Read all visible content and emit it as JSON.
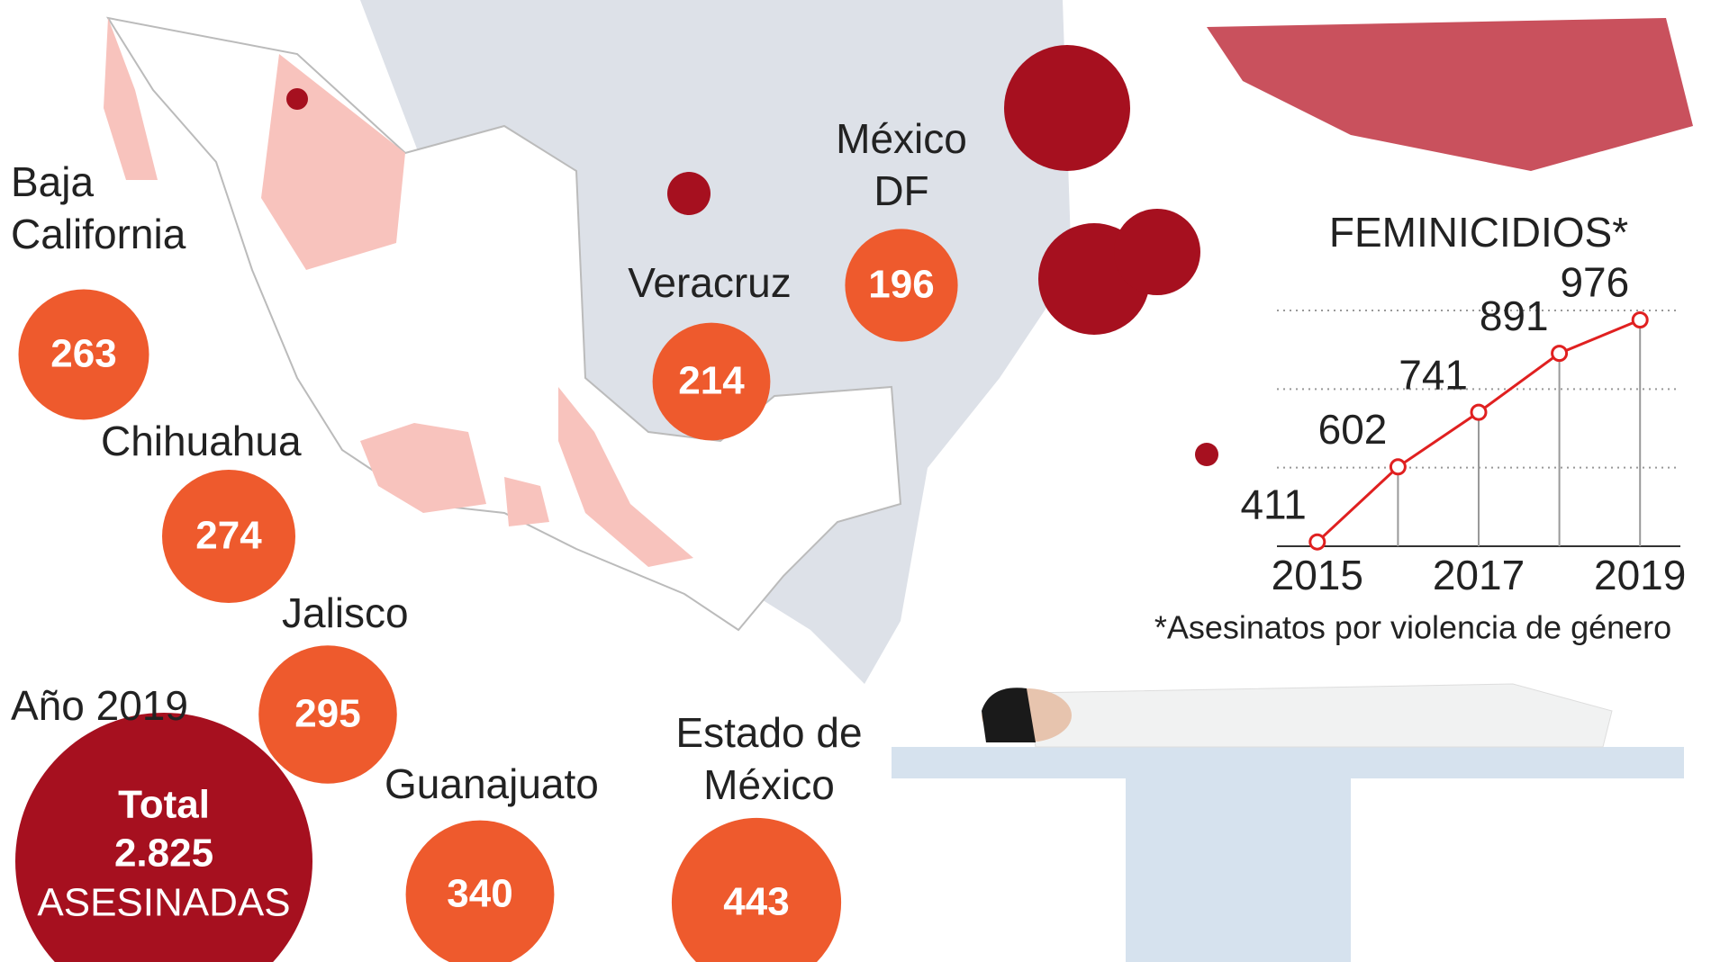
{
  "states": [
    {
      "label_lines": [
        "Baja",
        "California"
      ],
      "value": 263
    },
    {
      "label_lines": [
        "Chihuahua"
      ],
      "value": 274
    },
    {
      "label_lines": [
        "Jalisco"
      ],
      "value": 295
    },
    {
      "label_lines": [
        "Guanajuato"
      ],
      "value": 340
    },
    {
      "label_lines": [
        "Estado de",
        "México"
      ],
      "value": 443
    },
    {
      "label_lines": [
        "Veracruz"
      ],
      "value": 214
    },
    {
      "label_lines": [
        "México",
        "DF"
      ],
      "value": 196
    }
  ],
  "year_label": "Año 2019",
  "total": {
    "title": "Total",
    "value": "2.825",
    "caption": "ASESINADAS"
  },
  "chart_data": {
    "type": "line",
    "title": "FEMINICIDIOS*",
    "x": [
      2015,
      2016,
      2017,
      2018,
      2019
    ],
    "values": [
      411,
      602,
      741,
      891,
      976
    ],
    "color": "#e02020",
    "xlim": [
      2014.5,
      2019.5
    ],
    "xticks": [
      2015,
      2017,
      2019
    ],
    "ylim": [
      400,
      1000
    ],
    "yticks": [
      600,
      800,
      1000
    ],
    "grid": true,
    "note": "*Asesinatos por violencia de género"
  }
}
